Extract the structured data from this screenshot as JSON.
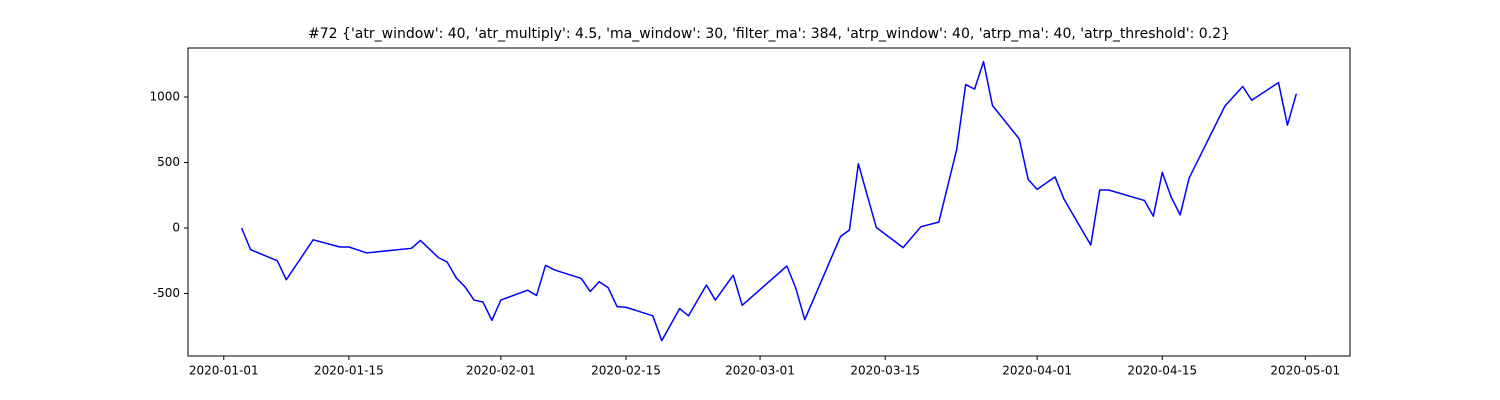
{
  "chart_data": {
    "type": "line",
    "title": "#72 {'atr_window': 40, 'atr_multiply': 4.5, 'ma_window': 30, 'filter_ma': 384, 'atrp_window': 40, 'atrp_ma': 40, 'atrp_threshold': 0.2}",
    "x": [
      "2020-01-03",
      "2020-01-04",
      "2020-01-07",
      "2020-01-08",
      "2020-01-11",
      "2020-01-14",
      "2020-01-15",
      "2020-01-17",
      "2020-01-22",
      "2020-01-23",
      "2020-01-25",
      "2020-01-26",
      "2020-01-27",
      "2020-01-28",
      "2020-01-29",
      "2020-01-30",
      "2020-01-31",
      "2020-02-01",
      "2020-02-04",
      "2020-02-05",
      "2020-02-06",
      "2020-02-07",
      "2020-02-10",
      "2020-02-11",
      "2020-02-12",
      "2020-02-13",
      "2020-02-14",
      "2020-02-15",
      "2020-02-18",
      "2020-02-19",
      "2020-02-21",
      "2020-02-22",
      "2020-02-24",
      "2020-02-25",
      "2020-02-27",
      "2020-02-28",
      "2020-03-04",
      "2020-03-05",
      "2020-03-06",
      "2020-03-10",
      "2020-03-11",
      "2020-03-12",
      "2020-03-14",
      "2020-03-17",
      "2020-03-19",
      "2020-03-21",
      "2020-03-23",
      "2020-03-24",
      "2020-03-25",
      "2020-03-26",
      "2020-03-27",
      "2020-03-30",
      "2020-03-31",
      "2020-04-01",
      "2020-04-03",
      "2020-04-04",
      "2020-04-07",
      "2020-04-08",
      "2020-04-09",
      "2020-04-13",
      "2020-04-14",
      "2020-04-15",
      "2020-04-16",
      "2020-04-17",
      "2020-04-18",
      "2020-04-22",
      "2020-04-24",
      "2020-04-25",
      "2020-04-28",
      "2020-04-29",
      "2020-04-30"
    ],
    "series": [
      {
        "color": "#0000ff",
        "values": [
          0,
          -165,
          -250,
          -395,
          -90,
          -145,
          -145,
          -190,
          -155,
          -95,
          -225,
          -260,
          -380,
          -450,
          -550,
          -565,
          -705,
          -550,
          -475,
          -515,
          -285,
          -320,
          -385,
          -485,
          -410,
          -455,
          -600,
          -605,
          -670,
          -860,
          -615,
          -670,
          -435,
          -550,
          -360,
          -590,
          -290,
          -460,
          -700,
          -65,
          -15,
          490,
          5,
          -150,
          10,
          45,
          600,
          1095,
          1060,
          1270,
          935,
          680,
          370,
          295,
          390,
          220,
          -130,
          290,
          290,
          210,
          90,
          425,
          235,
          100,
          380,
          930,
          1080,
          975,
          1110,
          785,
          1025
        ]
      }
    ],
    "xlim": [
      "2019-12-28",
      "2020-05-06"
    ],
    "xticks": [
      "2020-01-01",
      "2020-01-15",
      "2020-02-01",
      "2020-02-15",
      "2020-03-01",
      "2020-03-15",
      "2020-04-01",
      "2020-04-15",
      "2020-05-01"
    ],
    "ylim": [
      -977,
      1374
    ],
    "yticks": [
      -500,
      0,
      500,
      1000
    ],
    "grid": false
  }
}
